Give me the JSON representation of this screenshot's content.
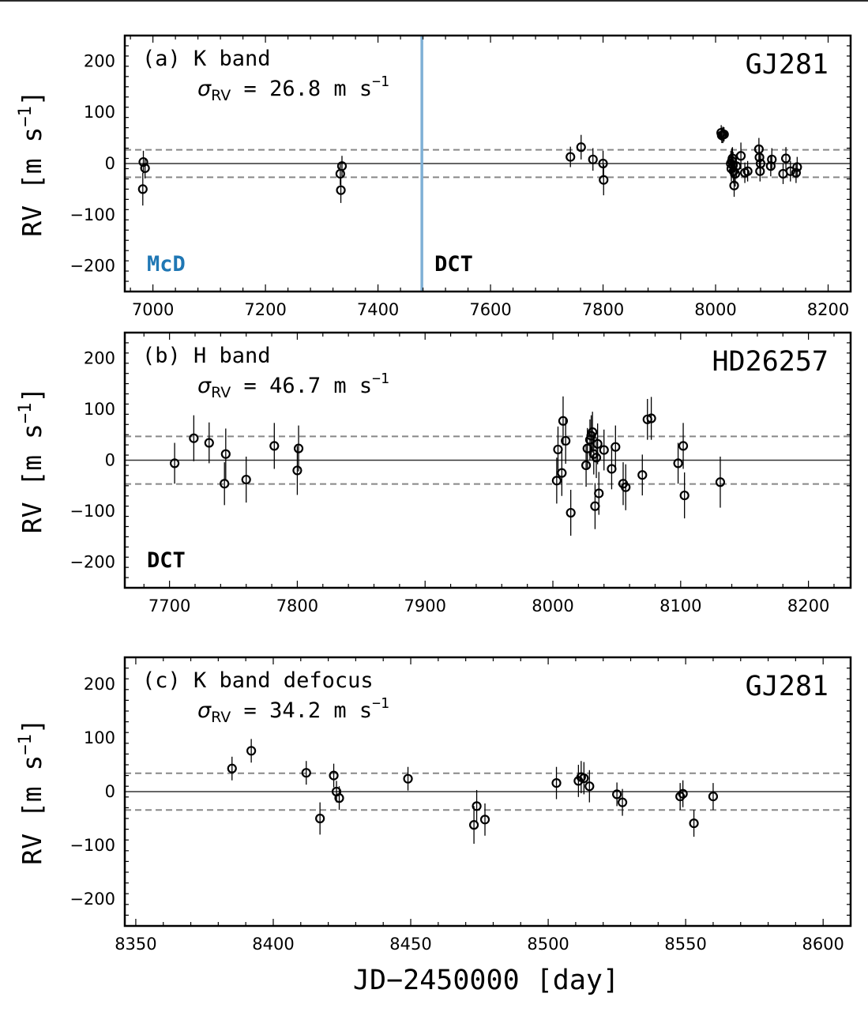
{
  "colors": {
    "mcd": "#1f77b4",
    "dct": "#000000",
    "divider": "#7fb0d6",
    "sigma_line": "#888888",
    "zero_line": "#333333"
  },
  "xlabel": "JD−2450000 [day]",
  "ylabel": "RV [m s",
  "ylabel_exp": "−1",
  "ylabel_close": "]",
  "sigma_label": {
    "prefix": "σ",
    "sub": "RV",
    "eq_prefix": " = ",
    "unit": " m s",
    "exp": "−1"
  },
  "chart_data": [
    {
      "type": "scatter",
      "panel_label": "(a) K band",
      "target": "GJ281",
      "sigma_rv": 26.8,
      "sigma_text": "26.8",
      "xlim": [
        6950,
        8240
      ],
      "ylim": [
        -250,
        250
      ],
      "xticks": [
        7000,
        7200,
        7400,
        7600,
        7800,
        8000,
        8200
      ],
      "yticks": [
        200,
        100,
        0,
        -100,
        -200
      ],
      "ytick_labels": [
        "200",
        "100",
        "0",
        "−100",
        "−200"
      ],
      "divider_x": 7478,
      "instruments": [
        {
          "name": "McD",
          "color_key": "mcd",
          "side": "left"
        },
        {
          "name": "DCT",
          "color_key": "dct",
          "side": "right-of-divider"
        }
      ],
      "points": [
        {
          "x": 6983,
          "y": 3,
          "err": 22
        },
        {
          "x": 6986,
          "y": -9,
          "err": 20
        },
        {
          "x": 6982,
          "y": -50,
          "err": 32
        },
        {
          "x": 7333,
          "y": -20,
          "err": 22
        },
        {
          "x": 7336,
          "y": -5,
          "err": 20
        },
        {
          "x": 7334,
          "y": -52,
          "err": 25
        },
        {
          "x": 7742,
          "y": 13,
          "err": 20
        },
        {
          "x": 7761,
          "y": 32,
          "err": 24
        },
        {
          "x": 7782,
          "y": 8,
          "err": 22
        },
        {
          "x": 7800,
          "y": 0,
          "err": 25
        },
        {
          "x": 7801,
          "y": -32,
          "err": 30
        },
        {
          "x": 8010,
          "y": 60,
          "err": 15
        },
        {
          "x": 8011,
          "y": 55,
          "err": 15
        },
        {
          "x": 8013,
          "y": 56,
          "err": 16
        },
        {
          "x": 8015,
          "y": 57,
          "err": 14
        },
        {
          "x": 8027,
          "y": 0,
          "err": 25
        },
        {
          "x": 8028,
          "y": -10,
          "err": 25
        },
        {
          "x": 8029,
          "y": 5,
          "err": 25
        },
        {
          "x": 8030,
          "y": 10,
          "err": 22
        },
        {
          "x": 8031,
          "y": -3,
          "err": 26
        },
        {
          "x": 8032,
          "y": -15,
          "err": 24
        },
        {
          "x": 8033,
          "y": -43,
          "err": 22
        },
        {
          "x": 8035,
          "y": -20,
          "err": 25
        },
        {
          "x": 8037,
          "y": -5,
          "err": 24
        },
        {
          "x": 8045,
          "y": 15,
          "err": 26
        },
        {
          "x": 8052,
          "y": -18,
          "err": 20
        },
        {
          "x": 8057,
          "y": -15,
          "err": 20
        },
        {
          "x": 8077,
          "y": 28,
          "err": 22
        },
        {
          "x": 8078,
          "y": 12,
          "err": 22
        },
        {
          "x": 8079,
          "y": -15,
          "err": 20
        },
        {
          "x": 8080,
          "y": 0,
          "err": 22
        },
        {
          "x": 8098,
          "y": -5,
          "err": 20
        },
        {
          "x": 8100,
          "y": 8,
          "err": 22
        },
        {
          "x": 8120,
          "y": -20,
          "err": 20
        },
        {
          "x": 8125,
          "y": 10,
          "err": 22
        },
        {
          "x": 8133,
          "y": -15,
          "err": 20
        },
        {
          "x": 8143,
          "y": -18,
          "err": 20
        },
        {
          "x": 8145,
          "y": -7,
          "err": 20
        }
      ]
    },
    {
      "type": "scatter",
      "panel_label": "(b) H band",
      "target": "HD26257",
      "sigma_rv": 46.7,
      "sigma_text": "46.7",
      "xlim": [
        7665,
        8233
      ],
      "ylim": [
        -250,
        250
      ],
      "xticks": [
        7700,
        7800,
        7900,
        8000,
        8100,
        8200
      ],
      "yticks": [
        200,
        100,
        0,
        -100,
        -200
      ],
      "ytick_labels": [
        "200",
        "100",
        "0",
        "−100",
        "−200"
      ],
      "instruments": [
        {
          "name": "DCT",
          "color_key": "dct",
          "side": "left"
        }
      ],
      "points": [
        {
          "x": 7704,
          "y": -6,
          "err": 40
        },
        {
          "x": 7719,
          "y": 43,
          "err": 45
        },
        {
          "x": 7731,
          "y": 34,
          "err": 40
        },
        {
          "x": 7743,
          "y": -46,
          "err": 42
        },
        {
          "x": 7744,
          "y": 12,
          "err": 50
        },
        {
          "x": 7760,
          "y": -38,
          "err": 45
        },
        {
          "x": 7782,
          "y": 28,
          "err": 45
        },
        {
          "x": 7800,
          "y": -20,
          "err": 48
        },
        {
          "x": 7801,
          "y": 23,
          "err": 45
        },
        {
          "x": 8003,
          "y": -40,
          "err": 45
        },
        {
          "x": 8004,
          "y": 21,
          "err": 45
        },
        {
          "x": 8007,
          "y": -25,
          "err": 45
        },
        {
          "x": 8008,
          "y": 77,
          "err": 48
        },
        {
          "x": 8010,
          "y": 38,
          "err": 45
        },
        {
          "x": 8014,
          "y": -103,
          "err": 45
        },
        {
          "x": 8026,
          "y": -10,
          "err": 42
        },
        {
          "x": 8027,
          "y": 23,
          "err": 40
        },
        {
          "x": 8029,
          "y": 40,
          "err": 40
        },
        {
          "x": 8030,
          "y": 48,
          "err": 40
        },
        {
          "x": 8031,
          "y": 55,
          "err": 40
        },
        {
          "x": 8032,
          "y": 12,
          "err": 40
        },
        {
          "x": 8033,
          "y": -90,
          "err": 45
        },
        {
          "x": 8034,
          "y": 5,
          "err": 40
        },
        {
          "x": 8035,
          "y": 32,
          "err": 40
        },
        {
          "x": 8036,
          "y": -65,
          "err": 42
        },
        {
          "x": 8040,
          "y": 20,
          "err": 40
        },
        {
          "x": 8046,
          "y": -17,
          "err": 40
        },
        {
          "x": 8049,
          "y": 26,
          "err": 42
        },
        {
          "x": 8055,
          "y": -46,
          "err": 42
        },
        {
          "x": 8057,
          "y": -53,
          "err": 45
        },
        {
          "x": 8070,
          "y": -29,
          "err": 40
        },
        {
          "x": 8074,
          "y": 80,
          "err": 40
        },
        {
          "x": 8077,
          "y": 82,
          "err": 42
        },
        {
          "x": 8098,
          "y": -6,
          "err": 40
        },
        {
          "x": 8102,
          "y": 28,
          "err": 45
        },
        {
          "x": 8103,
          "y": -69,
          "err": 45
        },
        {
          "x": 8131,
          "y": -43,
          "err": 50
        }
      ]
    },
    {
      "type": "scatter",
      "panel_label": "(c) K band defocus",
      "target": "GJ281",
      "sigma_rv": 34.2,
      "sigma_text": "34.2",
      "xlim": [
        8346,
        8610
      ],
      "ylim": [
        -250,
        250
      ],
      "xticks": [
        8350,
        8400,
        8450,
        8500,
        8550,
        8600
      ],
      "yticks": [
        200,
        100,
        0,
        -100,
        -200
      ],
      "ytick_labels": [
        "200",
        "100",
        "0",
        "−100",
        "−200"
      ],
      "instruments": [],
      "points": [
        {
          "x": 8385,
          "y": 43,
          "err": 22
        },
        {
          "x": 8392,
          "y": 76,
          "err": 22
        },
        {
          "x": 8412,
          "y": 35,
          "err": 22
        },
        {
          "x": 8417,
          "y": -50,
          "err": 30
        },
        {
          "x": 8422,
          "y": 30,
          "err": 22
        },
        {
          "x": 8423,
          "y": 0,
          "err": 20
        },
        {
          "x": 8424,
          "y": -12,
          "err": 22
        },
        {
          "x": 8449,
          "y": 24,
          "err": 22
        },
        {
          "x": 8473,
          "y": -62,
          "err": 35
        },
        {
          "x": 8474,
          "y": -27,
          "err": 30
        },
        {
          "x": 8477,
          "y": -52,
          "err": 30
        },
        {
          "x": 8503,
          "y": 16,
          "err": 30
        },
        {
          "x": 8511,
          "y": 20,
          "err": 30
        },
        {
          "x": 8512,
          "y": 27,
          "err": 30
        },
        {
          "x": 8513,
          "y": 25,
          "err": 30
        },
        {
          "x": 8515,
          "y": 10,
          "err": 30
        },
        {
          "x": 8525,
          "y": -5,
          "err": 22
        },
        {
          "x": 8527,
          "y": -20,
          "err": 25
        },
        {
          "x": 8548,
          "y": -9,
          "err": 25
        },
        {
          "x": 8549,
          "y": -4,
          "err": 25
        },
        {
          "x": 8553,
          "y": -59,
          "err": 25
        },
        {
          "x": 8560,
          "y": -9,
          "err": 25
        }
      ]
    }
  ]
}
